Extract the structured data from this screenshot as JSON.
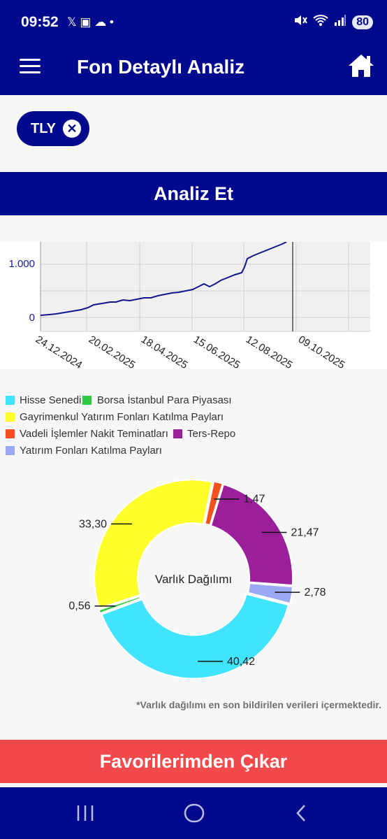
{
  "status": {
    "time": "09:52",
    "battery": "80",
    "left_icons": "𝕏 ▣ ☁ •",
    "right_icons": "🔇 ≋ ▮"
  },
  "appbar": {
    "title": "Fon Detaylı Analiz",
    "menu_icon": "hamburger-menu-icon",
    "home_icon": "home-icon"
  },
  "chip": {
    "label": "TLY",
    "close_glyph": "✕"
  },
  "analyze_button": "Analiz Et",
  "line_chart": {
    "type": "line",
    "y_ticks": [
      "0",
      "1.000"
    ],
    "x_ticks": [
      "24.12.2024",
      "20.02.2025",
      "18.04.2025",
      "15.06.2025",
      "12.08.2025",
      "09.10.2025"
    ],
    "line_color": "#14148c"
  },
  "chart_data": {
    "type": "pie",
    "center_label": "Varlık Dağılımı",
    "categories": [
      "Hisse Senedi",
      "Borsa İstanbul Para Piyasası",
      "Gayrimenkul Yatırım Fonları Katılma Payları",
      "Vadeli İşlemler Nakit Teminatları",
      "Ters-Repo",
      "Yatırım Fonları Katılma Payları"
    ],
    "values": [
      40.42,
      0.56,
      33.3,
      1.47,
      21.47,
      2.78
    ],
    "value_labels": [
      "40,42",
      "0,56",
      "33,30",
      "1,47",
      "21,47",
      "2,78"
    ],
    "colors": [
      "#41e4ff",
      "#2ecc40",
      "#ffff2a",
      "#f4511e",
      "#9b1f9b",
      "#9aa8f5"
    ]
  },
  "footnote": "*Varlık dağılımı en son bildirilen verileri içermektedir.",
  "favorite_button": "Favorilerimden Çıkar",
  "navbar": {
    "recents_icon": "recents-icon",
    "home_icon": "circle-home-icon",
    "back_icon": "back-icon"
  }
}
